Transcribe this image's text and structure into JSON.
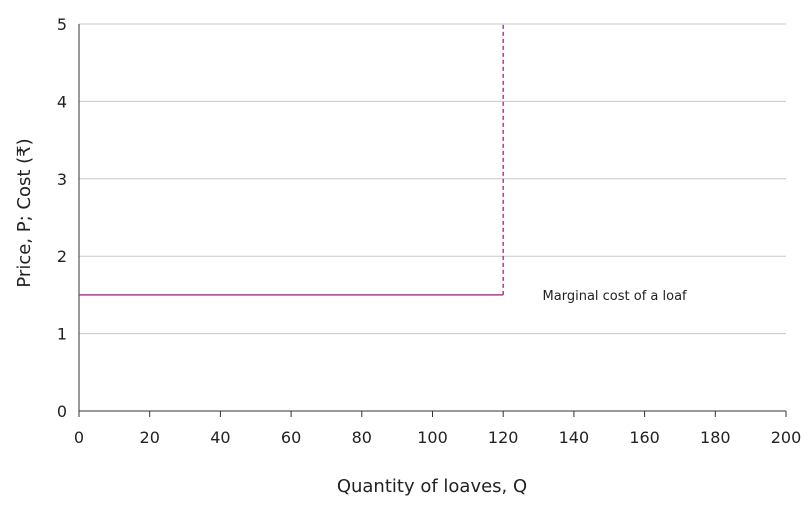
{
  "chart_data": {
    "type": "line",
    "title": "",
    "xlabel": "Quantity of loaves, Q",
    "ylabel": "Price, P; Cost (₹)",
    "xlim": [
      0,
      200
    ],
    "ylim": [
      0,
      5
    ],
    "xticks": [
      0,
      20,
      40,
      60,
      80,
      100,
      120,
      140,
      160,
      180,
      200
    ],
    "yticks": [
      0,
      1,
      2,
      3,
      4,
      5
    ],
    "grid": "horizontal",
    "series": [
      {
        "name": "Marginal cost of a loaf",
        "style": "solid",
        "color": "#b5388f",
        "x": [
          0,
          120
        ],
        "y": [
          1.5,
          1.5
        ]
      },
      {
        "style": "dashed",
        "color": "#b5388f",
        "x": [
          120,
          120
        ],
        "y": [
          1.5,
          5
        ]
      }
    ],
    "annotations": [
      {
        "text": "Marginal cost of a loaf",
        "x": 130,
        "y": 1.5
      }
    ]
  }
}
